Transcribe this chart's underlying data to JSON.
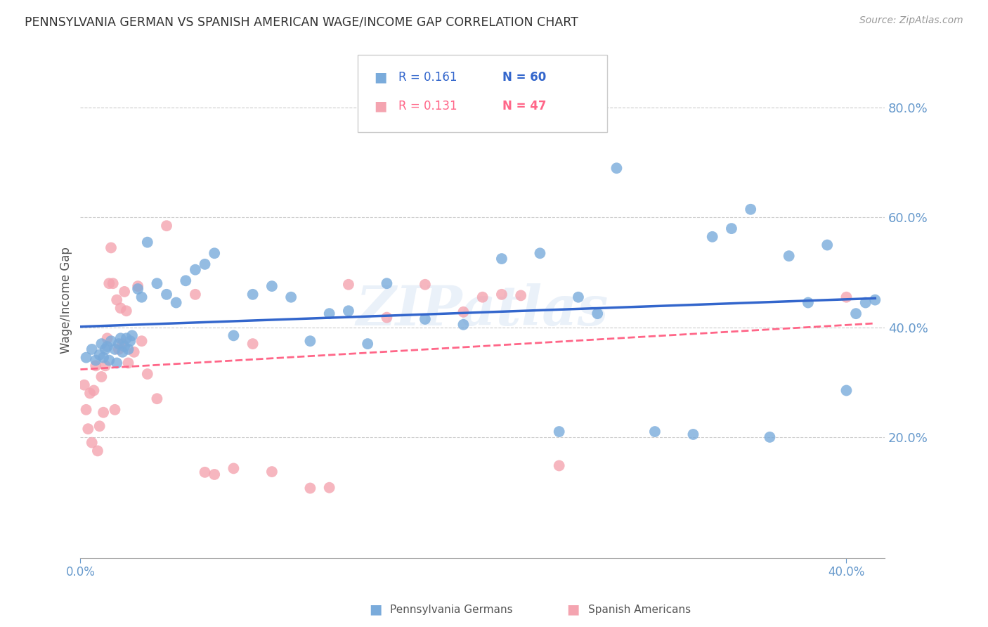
{
  "title": "PENNSYLVANIA GERMAN VS SPANISH AMERICAN WAGE/INCOME GAP CORRELATION CHART",
  "source": "Source: ZipAtlas.com",
  "ylabel": "Wage/Income Gap",
  "xlim": [
    0.0,
    0.42
  ],
  "ylim": [
    -0.02,
    0.92
  ],
  "yticks": [
    0.2,
    0.4,
    0.6,
    0.8
  ],
  "xticks": [
    0.0,
    0.4
  ],
  "xtick_labels": [
    "0.0%",
    "40.0%"
  ],
  "ytick_labels": [
    "20.0%",
    "40.0%",
    "60.0%",
    "80.0%"
  ],
  "blue_color": "#7AABDB",
  "pink_color": "#F4A4B0",
  "trend_blue": "#3366CC",
  "trend_pink": "#FF6688",
  "legend_r1": "R = 0.161",
  "legend_n1": "N = 60",
  "legend_r2": "R = 0.131",
  "legend_n2": "N = 47",
  "label1": "Pennsylvania Germans",
  "label2": "Spanish Americans",
  "watermark": "ZIPatlas",
  "background_color": "#FFFFFF",
  "grid_color": "#CCCCCC",
  "axis_color": "#6699CC",
  "blue_x": [
    0.003,
    0.006,
    0.008,
    0.01,
    0.011,
    0.012,
    0.013,
    0.014,
    0.015,
    0.016,
    0.018,
    0.019,
    0.02,
    0.021,
    0.022,
    0.023,
    0.024,
    0.025,
    0.026,
    0.027,
    0.03,
    0.032,
    0.035,
    0.04,
    0.045,
    0.05,
    0.055,
    0.06,
    0.065,
    0.07,
    0.08,
    0.09,
    0.1,
    0.11,
    0.12,
    0.13,
    0.14,
    0.15,
    0.16,
    0.18,
    0.2,
    0.22,
    0.24,
    0.25,
    0.26,
    0.27,
    0.28,
    0.3,
    0.32,
    0.33,
    0.34,
    0.35,
    0.36,
    0.37,
    0.38,
    0.39,
    0.4,
    0.405,
    0.41,
    0.415
  ],
  "blue_y": [
    0.345,
    0.36,
    0.34,
    0.35,
    0.37,
    0.345,
    0.36,
    0.365,
    0.34,
    0.375,
    0.36,
    0.335,
    0.37,
    0.38,
    0.355,
    0.365,
    0.38,
    0.36,
    0.375,
    0.385,
    0.47,
    0.455,
    0.555,
    0.48,
    0.46,
    0.445,
    0.485,
    0.505,
    0.515,
    0.535,
    0.385,
    0.46,
    0.475,
    0.455,
    0.375,
    0.425,
    0.43,
    0.37,
    0.48,
    0.415,
    0.405,
    0.525,
    0.535,
    0.21,
    0.455,
    0.425,
    0.69,
    0.21,
    0.205,
    0.565,
    0.58,
    0.615,
    0.2,
    0.53,
    0.445,
    0.55,
    0.285,
    0.425,
    0.445,
    0.45
  ],
  "pink_x": [
    0.002,
    0.003,
    0.004,
    0.005,
    0.006,
    0.007,
    0.008,
    0.009,
    0.01,
    0.011,
    0.012,
    0.013,
    0.014,
    0.015,
    0.016,
    0.017,
    0.018,
    0.019,
    0.02,
    0.021,
    0.022,
    0.023,
    0.024,
    0.025,
    0.028,
    0.03,
    0.032,
    0.035,
    0.04,
    0.045,
    0.06,
    0.065,
    0.07,
    0.08,
    0.09,
    0.1,
    0.12,
    0.13,
    0.14,
    0.16,
    0.18,
    0.2,
    0.21,
    0.22,
    0.23,
    0.25,
    0.4
  ],
  "pink_y": [
    0.295,
    0.25,
    0.215,
    0.28,
    0.19,
    0.285,
    0.33,
    0.175,
    0.22,
    0.31,
    0.245,
    0.33,
    0.38,
    0.48,
    0.545,
    0.48,
    0.25,
    0.45,
    0.36,
    0.435,
    0.37,
    0.465,
    0.43,
    0.335,
    0.355,
    0.475,
    0.375,
    0.315,
    0.27,
    0.585,
    0.46,
    0.136,
    0.132,
    0.143,
    0.37,
    0.137,
    0.107,
    0.108,
    0.478,
    0.418,
    0.478,
    0.428,
    0.455,
    0.46,
    0.458,
    0.148,
    0.455
  ]
}
